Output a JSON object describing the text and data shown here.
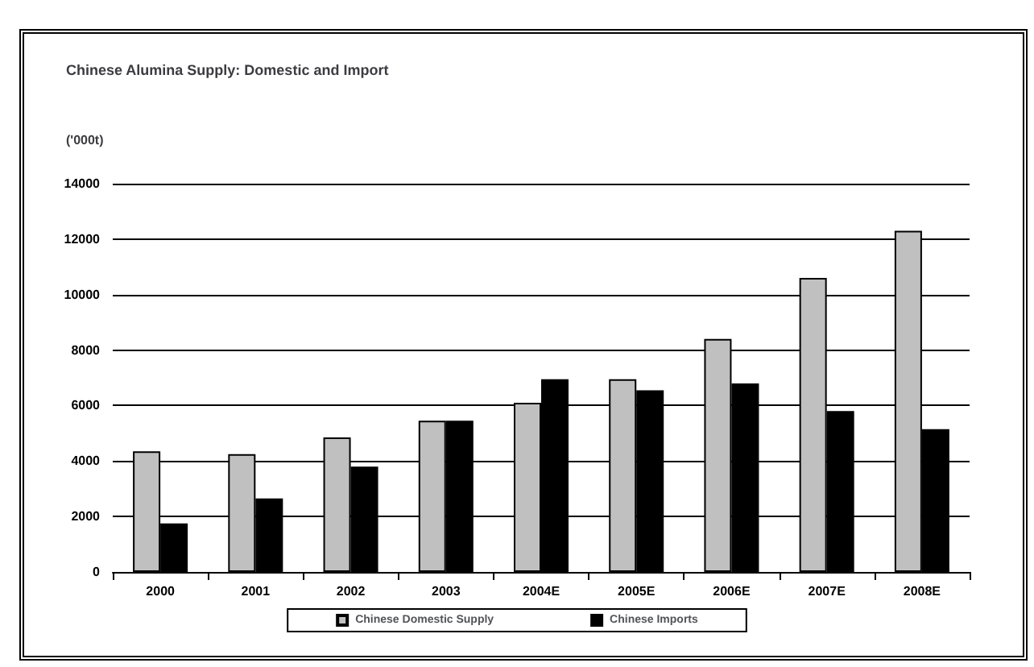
{
  "chart_data": {
    "type": "bar",
    "title": "Chinese Alumina Supply: Domestic and Import",
    "ylabel": "('000t)",
    "categories": [
      "2000",
      "2001",
      "2002",
      "2003",
      "2004E",
      "2005E",
      "2006E",
      "2007E",
      "2008E"
    ],
    "series": [
      {
        "name": "Chinese Domestic Supply",
        "color": "#c0c0c0",
        "values": [
          4350,
          4250,
          4850,
          5450,
          6100,
          6950,
          8400,
          10600,
          12300
        ]
      },
      {
        "name": "Chinese Imports",
        "color": "#000000",
        "values": [
          1750,
          2650,
          3800,
          5450,
          6950,
          6550,
          6800,
          5800,
          5150
        ]
      }
    ],
    "ylim": [
      0,
      14000
    ],
    "yticks": [
      0,
      2000,
      4000,
      6000,
      8000,
      10000,
      12000,
      14000
    ],
    "grid": "y",
    "legend": "bottom"
  }
}
